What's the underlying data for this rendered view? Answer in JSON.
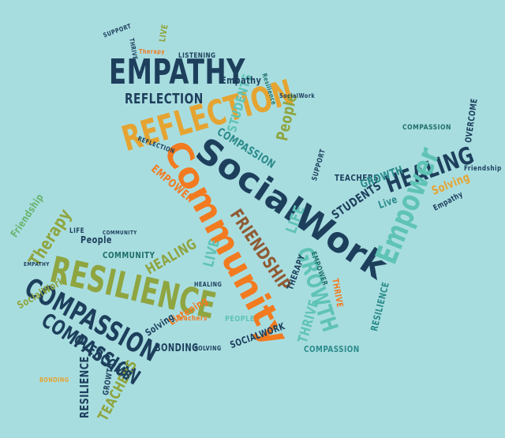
{
  "colors": {
    "background": "#a8dde0",
    "navy": "#1d3f5c",
    "teal": "#2a8a8a",
    "green": "#69b46e",
    "olive": "#8fa540",
    "orange": "#f27b20",
    "gold": "#e5a431",
    "brown": "#8f5a33",
    "light_teal": "#5fc3b6",
    "dark_teal": "#1f6f6b"
  },
  "words": {
    "empathy_big": "EMPATHY",
    "reflection_big": "REFLECTION",
    "reflection_med": "REFLECTION",
    "community": "Community",
    "socialwork_big": "SocialWork",
    "healing_right": "HEALING",
    "empower_big": "Empower",
    "growth_big": "GROWTH",
    "friendship_mid": "FRIENDSHIP",
    "resilience_big": "RESILIENCE",
    "compassion_big": "COMPASSION",
    "compassion_wing": "COMPASSION",
    "compassion_med": "COMPASSION",
    "therapy_left": "Therapy",
    "friendship_left": "Friendship",
    "people_left": "People",
    "people_head": "People",
    "students_head": "STUDENTS",
    "students_mid": "STUDENTS",
    "teachers_right": "TEACHERS",
    "teachers_bottom": "TEACHERS",
    "compassion_right": "COMPASSION",
    "overcome_right": "OVERCOME",
    "solving_right": "Solving",
    "empower_head": "EMPOWER",
    "life_wing": "LIFE",
    "live_wing": "LIVE",
    "thrive_mid": "THRIVE",
    "overcome_bottom": "OVERCOME",
    "resilience_bottom": "RESILIENCE",
    "socialwork_left": "SocialWork",
    "bonding": "BONDING",
    "listening": "Listening",
    "solving_mid": "Solving",
    "healing_mid": "HEALING",
    "community_left": "COMMUNITY",
    "growth_small": "GROWTH",
    "live_small": "Live",
    "empathy_small": "Empathy",
    "empathy_head": "Empathy",
    "therapy_mid": "THERAPY",
    "socialwork_bottom": "SOCIALWORK",
    "compassion_bottom": "COMPASSION",
    "resilience_right": "RESILIENCE",
    "thrive_right": "THRIVE",
    "friendship_right": "Friendship",
    "life_small": "LIFE",
    "people_small": "PEOPLE",
    "growth_tail": "GROWTH",
    "listening_top": "LISTENING",
    "therapy_top": "Therapy",
    "live_top": "LIVE",
    "thrive_top": "THRIVE",
    "support_top": "SUPPORT",
    "teachers_small": "Teachers",
    "bonding_small": "BONDING",
    "solving_small": "SOLVING",
    "healing_small": "HEALING",
    "reflection_small": "REFLECTION",
    "resilience_small": "Resilience",
    "socialwork_small": "SocialWork",
    "support_mid": "SUPPORT",
    "empower_small": "EMPOWER",
    "community_small": "COMMUNITY",
    "empathy_tiny": "EMPATHY"
  }
}
